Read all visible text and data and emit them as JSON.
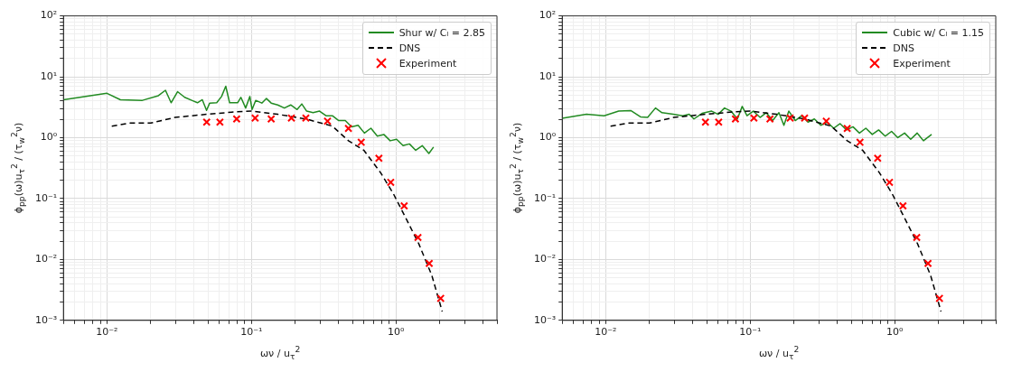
{
  "chart_data": [
    {
      "type": "line",
      "xlabel": "ων / u$_{τ}$$^{2}$",
      "ylabel": "ϕ$_{pp}$(ω)u$_{τ}$$^{2}$ / (τ$_{w}$$^{2}$ν)",
      "log": "xy",
      "grid": true,
      "legend": "top right",
      "xlim": [
        0.005,
        5
      ],
      "ylim": [
        0.001,
        100
      ],
      "xticks": [
        {
          "value": 0.005,
          "label": null
        },
        {
          "value": 0.006,
          "label": null
        },
        {
          "value": 0.007,
          "label": null
        },
        {
          "value": 0.008,
          "label": null
        },
        {
          "value": 0.009,
          "label": null
        },
        {
          "value": 0.01,
          "label": "10⁻²"
        },
        {
          "value": 0.02,
          "label": null
        },
        {
          "value": 0.03,
          "label": null
        },
        {
          "value": 0.04,
          "label": null
        },
        {
          "value": 0.05,
          "label": null
        },
        {
          "value": 0.06,
          "label": null
        },
        {
          "value": 0.07,
          "label": null
        },
        {
          "value": 0.08,
          "label": null
        },
        {
          "value": 0.09,
          "label": null
        },
        {
          "value": 0.1,
          "label": "10⁻¹"
        },
        {
          "value": 0.2,
          "label": null
        },
        {
          "value": 0.3,
          "label": null
        },
        {
          "value": 0.4,
          "label": null
        },
        {
          "value": 0.5,
          "label": null
        },
        {
          "value": 0.6,
          "label": null
        },
        {
          "value": 0.7,
          "label": null
        },
        {
          "value": 0.8,
          "label": null
        },
        {
          "value": 0.9,
          "label": null
        },
        {
          "value": 1,
          "label": "10⁰"
        },
        {
          "value": 2,
          "label": null
        },
        {
          "value": 3,
          "label": null
        },
        {
          "value": 4,
          "label": null
        },
        {
          "value": 5,
          "label": null
        }
      ],
      "yticks": [
        {
          "value": 0.001,
          "label": "10⁻³"
        },
        {
          "value": 0.002,
          "label": null
        },
        {
          "value": 0.003,
          "label": null
        },
        {
          "value": 0.004,
          "label": null
        },
        {
          "value": 0.005,
          "label": null
        },
        {
          "value": 0.006,
          "label": null
        },
        {
          "value": 0.007,
          "label": null
        },
        {
          "value": 0.008,
          "label": null
        },
        {
          "value": 0.009,
          "label": null
        },
        {
          "value": 0.01,
          "label": "10⁻²"
        },
        {
          "value": 0.02,
          "label": null
        },
        {
          "value": 0.03,
          "label": null
        },
        {
          "value": 0.04,
          "label": null
        },
        {
          "value": 0.05,
          "label": null
        },
        {
          "value": 0.06,
          "label": null
        },
        {
          "value": 0.07,
          "label": null
        },
        {
          "value": 0.08,
          "label": null
        },
        {
          "value": 0.09,
          "label": null
        },
        {
          "value": 0.1,
          "label": "10⁻¹"
        },
        {
          "value": 0.2,
          "label": null
        },
        {
          "value": 0.3,
          "label": null
        },
        {
          "value": 0.4,
          "label": null
        },
        {
          "value": 0.5,
          "label": null
        },
        {
          "value": 0.6,
          "label": null
        },
        {
          "value": 0.7,
          "label": null
        },
        {
          "value": 0.8,
          "label": null
        },
        {
          "value": 0.9,
          "label": null
        },
        {
          "value": 1,
          "label": "10⁰"
        },
        {
          "value": 2,
          "label": null
        },
        {
          "value": 3,
          "label": null
        },
        {
          "value": 4,
          "label": null
        },
        {
          "value": 5,
          "label": null
        },
        {
          "value": 6,
          "label": null
        },
        {
          "value": 7,
          "label": null
        },
        {
          "value": 8,
          "label": null
        },
        {
          "value": 9,
          "label": null
        },
        {
          "value": 10,
          "label": "10¹"
        },
        {
          "value": 20,
          "label": null
        },
        {
          "value": 30,
          "label": null
        },
        {
          "value": 40,
          "label": null
        },
        {
          "value": 50,
          "label": null
        },
        {
          "value": 60,
          "label": null
        },
        {
          "value": 70,
          "label": null
        },
        {
          "value": 80,
          "label": null
        },
        {
          "value": 90,
          "label": null
        },
        {
          "value": 100,
          "label": "10²"
        }
      ],
      "series": [
        {
          "name": "Shur w/ Cₗ = 2.85",
          "type": "line",
          "color": "#228b22",
          "line_style": "solid",
          "x": [
            0.005,
            0.01,
            0.0124,
            0.0176,
            0.0227,
            0.0254,
            0.0278,
            0.0308,
            0.0345,
            0.0386,
            0.0423,
            0.0457,
            0.0489,
            0.0514,
            0.0575,
            0.0621,
            0.0664,
            0.0706,
            0.0802,
            0.0845,
            0.0912,
            0.0975,
            0.101,
            0.107,
            0.118,
            0.127,
            0.137,
            0.152,
            0.169,
            0.187,
            0.207,
            0.223,
            0.241,
            0.267,
            0.296,
            0.328,
            0.363,
            0.402,
            0.446,
            0.493,
            0.547,
            0.605,
            0.671,
            0.743,
            0.824,
            0.912,
            1.01,
            1.12,
            1.24,
            1.37,
            1.52,
            1.69,
            1.82
          ],
          "values": [
            4.2,
            5.35,
            4.2,
            4.1,
            4.9,
            6.0,
            3.75,
            5.7,
            4.6,
            4.1,
            3.75,
            4.2,
            2.8,
            3.7,
            3.75,
            4.75,
            7.0,
            3.75,
            3.75,
            4.6,
            3.07,
            4.75,
            2.9,
            4.1,
            3.7,
            4.4,
            3.7,
            3.45,
            3.07,
            3.45,
            2.9,
            3.58,
            2.73,
            2.57,
            2.73,
            2.29,
            2.29,
            1.91,
            1.91,
            1.51,
            1.6,
            1.19,
            1.43,
            1.06,
            1.13,
            0.89,
            0.94,
            0.74,
            0.79,
            0.62,
            0.74,
            0.55,
            0.7
          ]
        },
        {
          "name": "DNS",
          "type": "line",
          "color": "#000000",
          "line_style": "dashed",
          "x": [
            0.0108,
            0.0145,
            0.0201,
            0.0296,
            0.049,
            0.079,
            0.1,
            0.152,
            0.238,
            0.363,
            0.469,
            0.6,
            0.78,
            0.96,
            1.18,
            1.44,
            1.77,
            2.09
          ],
          "values": [
            1.55,
            1.74,
            1.74,
            2.15,
            2.42,
            2.67,
            2.73,
            2.42,
            2.03,
            1.55,
            0.89,
            0.62,
            0.27,
            0.12,
            0.046,
            0.018,
            0.0055,
            0.0014
          ]
        },
        {
          "name": "Experiment",
          "type": "scatter",
          "color": "#ff0000",
          "marker": "cross",
          "x": [
            0.049,
            0.0605,
            0.079,
            0.106,
            0.137,
            0.189,
            0.238,
            0.336,
            0.469,
            0.575,
            0.762,
            0.92,
            1.14,
            1.42,
            1.7,
            2.04
          ],
          "values": [
            1.8,
            1.8,
            2.03,
            2.1,
            2.03,
            2.1,
            2.1,
            1.87,
            1.42,
            0.84,
            0.46,
            0.185,
            0.076,
            0.023,
            0.0086,
            0.0023
          ]
        }
      ]
    },
    {
      "type": "line",
      "xlabel": "ων / u$_{τ}$$^{2}$",
      "ylabel": "ϕ$_{pp}$(ω)u$_{τ}$$^{2}$ / (τ$_{w}$$^{2}$ν)",
      "log": "xy",
      "grid": true,
      "legend": "top right",
      "xlim": [
        0.005,
        5
      ],
      "ylim": [
        0.001,
        100
      ],
      "xticks": [
        {
          "value": 0.005,
          "label": null
        },
        {
          "value": 0.006,
          "label": null
        },
        {
          "value": 0.007,
          "label": null
        },
        {
          "value": 0.008,
          "label": null
        },
        {
          "value": 0.009,
          "label": null
        },
        {
          "value": 0.01,
          "label": "10⁻²"
        },
        {
          "value": 0.02,
          "label": null
        },
        {
          "value": 0.03,
          "label": null
        },
        {
          "value": 0.04,
          "label": null
        },
        {
          "value": 0.05,
          "label": null
        },
        {
          "value": 0.06,
          "label": null
        },
        {
          "value": 0.07,
          "label": null
        },
        {
          "value": 0.08,
          "label": null
        },
        {
          "value": 0.09,
          "label": null
        },
        {
          "value": 0.1,
          "label": "10⁻¹"
        },
        {
          "value": 0.2,
          "label": null
        },
        {
          "value": 0.3,
          "label": null
        },
        {
          "value": 0.4,
          "label": null
        },
        {
          "value": 0.5,
          "label": null
        },
        {
          "value": 0.6,
          "label": null
        },
        {
          "value": 0.7,
          "label": null
        },
        {
          "value": 0.8,
          "label": null
        },
        {
          "value": 0.9,
          "label": null
        },
        {
          "value": 1,
          "label": "10⁰"
        },
        {
          "value": 2,
          "label": null
        },
        {
          "value": 3,
          "label": null
        },
        {
          "value": 4,
          "label": null
        },
        {
          "value": 5,
          "label": null
        }
      ],
      "yticks": [
        {
          "value": 0.001,
          "label": "10⁻³"
        },
        {
          "value": 0.002,
          "label": null
        },
        {
          "value": 0.003,
          "label": null
        },
        {
          "value": 0.004,
          "label": null
        },
        {
          "value": 0.005,
          "label": null
        },
        {
          "value": 0.006,
          "label": null
        },
        {
          "value": 0.007,
          "label": null
        },
        {
          "value": 0.008,
          "label": null
        },
        {
          "value": 0.009,
          "label": null
        },
        {
          "value": 0.01,
          "label": "10⁻²"
        },
        {
          "value": 0.02,
          "label": null
        },
        {
          "value": 0.03,
          "label": null
        },
        {
          "value": 0.04,
          "label": null
        },
        {
          "value": 0.05,
          "label": null
        },
        {
          "value": 0.06,
          "label": null
        },
        {
          "value": 0.07,
          "label": null
        },
        {
          "value": 0.08,
          "label": null
        },
        {
          "value": 0.09,
          "label": null
        },
        {
          "value": 0.1,
          "label": "10⁻¹"
        },
        {
          "value": 0.2,
          "label": null
        },
        {
          "value": 0.3,
          "label": null
        },
        {
          "value": 0.4,
          "label": null
        },
        {
          "value": 0.5,
          "label": null
        },
        {
          "value": 0.6,
          "label": null
        },
        {
          "value": 0.7,
          "label": null
        },
        {
          "value": 0.8,
          "label": null
        },
        {
          "value": 0.9,
          "label": null
        },
        {
          "value": 1,
          "label": "10⁰"
        },
        {
          "value": 2,
          "label": null
        },
        {
          "value": 3,
          "label": null
        },
        {
          "value": 4,
          "label": null
        },
        {
          "value": 5,
          "label": null
        },
        {
          "value": 6,
          "label": null
        },
        {
          "value": 7,
          "label": null
        },
        {
          "value": 8,
          "label": null
        },
        {
          "value": 9,
          "label": null
        },
        {
          "value": 10,
          "label": "10¹"
        },
        {
          "value": 20,
          "label": null
        },
        {
          "value": 30,
          "label": null
        },
        {
          "value": 40,
          "label": null
        },
        {
          "value": 50,
          "label": null
        },
        {
          "value": 60,
          "label": null
        },
        {
          "value": 70,
          "label": null
        },
        {
          "value": 80,
          "label": null
        },
        {
          "value": 90,
          "label": null
        },
        {
          "value": 100,
          "label": "10²"
        }
      ],
      "series": [
        {
          "name": "Cubic w/ Cₗ = 1.15",
          "type": "line",
          "color": "#228b22",
          "line_style": "solid",
          "x": [
            0.005,
            0.00736,
            0.00975,
            0.0123,
            0.0149,
            0.0174,
            0.0195,
            0.0221,
            0.0245,
            0.0293,
            0.0341,
            0.0378,
            0.0408,
            0.0464,
            0.0541,
            0.06,
            0.0664,
            0.0736,
            0.0815,
            0.088,
            0.095,
            0.105,
            0.117,
            0.129,
            0.143,
            0.158,
            0.171,
            0.185,
            0.205,
            0.227,
            0.251,
            0.278,
            0.308,
            0.341,
            0.378,
            0.419,
            0.464,
            0.514,
            0.57,
            0.631,
            0.699,
            0.774,
            0.858,
            0.951,
            1.05,
            1.17,
            1.29,
            1.43,
            1.58,
            1.8
          ],
          "values": [
            2.08,
            2.42,
            2.29,
            2.73,
            2.79,
            2.2,
            2.15,
            3.07,
            2.57,
            2.42,
            2.29,
            2.42,
            2.03,
            2.51,
            2.73,
            2.42,
            3.07,
            2.73,
            2.03,
            3.26,
            2.29,
            2.73,
            2.15,
            2.57,
            1.91,
            2.57,
            1.6,
            2.73,
            1.91,
            2.29,
            1.8,
            2.03,
            1.6,
            1.8,
            1.43,
            1.7,
            1.34,
            1.51,
            1.19,
            1.43,
            1.13,
            1.34,
            1.06,
            1.27,
            1.0,
            1.19,
            0.94,
            1.19,
            0.89,
            1.13
          ]
        },
        {
          "name": "DNS",
          "type": "line",
          "color": "#000000",
          "line_style": "dashed",
          "x": [
            0.0108,
            0.0145,
            0.0201,
            0.0296,
            0.049,
            0.079,
            0.1,
            0.152,
            0.238,
            0.363,
            0.469,
            0.6,
            0.78,
            0.96,
            1.18,
            1.44,
            1.77,
            2.09
          ],
          "values": [
            1.55,
            1.74,
            1.74,
            2.15,
            2.42,
            2.67,
            2.73,
            2.42,
            2.03,
            1.55,
            0.89,
            0.62,
            0.27,
            0.12,
            0.046,
            0.018,
            0.0055,
            0.0014
          ]
        },
        {
          "name": "Experiment",
          "type": "scatter",
          "color": "#ff0000",
          "marker": "cross",
          "x": [
            0.049,
            0.0605,
            0.079,
            0.106,
            0.137,
            0.189,
            0.238,
            0.336,
            0.469,
            0.575,
            0.762,
            0.92,
            1.14,
            1.42,
            1.7,
            2.04
          ],
          "values": [
            1.8,
            1.8,
            2.03,
            2.1,
            2.03,
            2.1,
            2.1,
            1.87,
            1.42,
            0.84,
            0.46,
            0.185,
            0.076,
            0.023,
            0.0086,
            0.0023
          ]
        }
      ]
    }
  ]
}
